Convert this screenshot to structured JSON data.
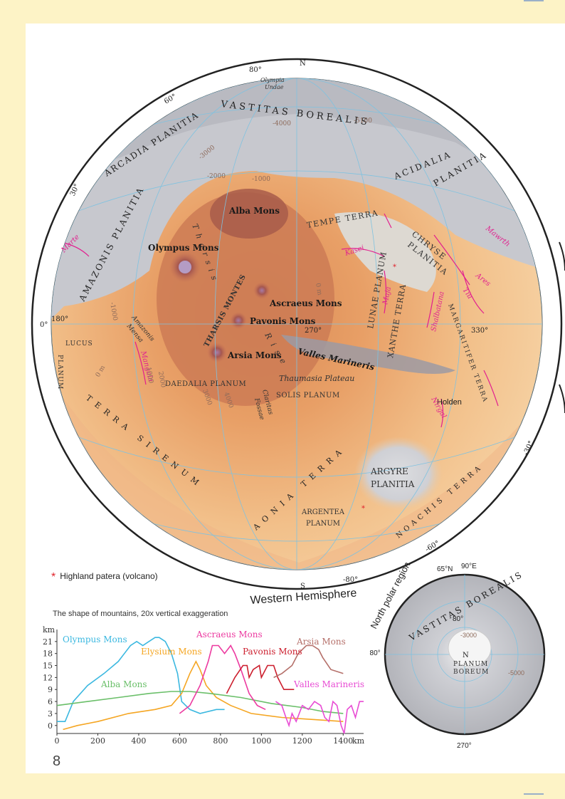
{
  "main_map": {
    "compass_north": "N",
    "compass_south": "S",
    "caption": "Western Hemisphere",
    "degree_labels": {
      "lat_80": "80°",
      "lat_60": "60°",
      "lat_30": "30°",
      "lat_0": "0°",
      "lat_m30": "-30°",
      "lat_m60": "-60°",
      "lat_m80": "-80°",
      "lon_180": "180°",
      "lon_270": "270°",
      "lon_330": "330°"
    },
    "regions": {
      "vastitas_borealis": "VASTITAS BOREALIS",
      "arcadia_planitia": "ARCADIA PLANITIA",
      "amazonis_planitia": "AMAZONIS PLANITIA",
      "acidalia": "ACIDALIA",
      "planitia": "PLANITIA",
      "tempe_terra": "TEMPE TERRA",
      "chryse": "CHRYSE",
      "chryse_planitia": "PLANITIA",
      "lunae_planum": "LUNAE PLANUM",
      "xanthe_terra": "XANTHE TERRA",
      "margaritifer_terra": "MARGARITIFER TERRA",
      "lucus": "LUCUS",
      "planum": "PLANUM",
      "daedalia_planum": "DAEDALIA PLANUM",
      "solis_planum": "SOLIS PLANUM",
      "terra_sirenum": "TERRA SIRENUM",
      "aonia_terra": "AONIA TERRA",
      "argyre": "ARGYRE",
      "argyre_planitia": "PLANITIA",
      "noachis_terra": "NOACHIS TERRA",
      "argentea": "ARGENTEA",
      "argentea_planum": "PLANUM",
      "tharsis_rise_1": "Tharsis",
      "tharsis_rise_2": "Rise",
      "tharsis_montes": "THARSIS MONTES",
      "thaumasia_plateau": "Thaumasia Plateau",
      "olympia_undae": "Olympia",
      "olympia_undae_2": "Undae",
      "amazonis_mensa": "Amazonis",
      "amazonis_mensa_2": "Mensa",
      "claritas_fossae": "Claritas",
      "claritas_fossae_2": "Fossae"
    },
    "features": {
      "alba_mons": "Alba Mons",
      "olympus_mons": "Olympus Mons",
      "ascraeus_mons": "Ascraeus Mons",
      "pavonis_mons": "Pavonis Mons",
      "arsia_mons": "Arsia Mons",
      "valles_marineris": "Valles Marineris",
      "holden": "Holden"
    },
    "valleys": {
      "marte": "Marte",
      "mawrth": "Mawrth",
      "kasei": "Kasei",
      "maja": "Maja",
      "ares": "Ares",
      "tiu": "Tiu",
      "shalbatana": "Shalbatana",
      "mangala": "Mangala",
      "nirgal": "Nirgal"
    },
    "contours": {
      "c_m4000": "-4000",
      "c_m5100": "-5100",
      "c_m3000": "-3000",
      "c_m2000": "-2000",
      "c_m1000": "-1000",
      "c_m1000b": "-1000",
      "c_0m": "0 m",
      "c_0m_b": "0 m",
      "c_1000": "1000",
      "c_2000": "2000",
      "c_3000": "3000",
      "c_4000": "4000"
    }
  },
  "legend": {
    "highland_patera": "Highland patera (volcano)"
  },
  "polar_map": {
    "title": "North polar region",
    "lat_label": "65°N",
    "lon_90": "90°E",
    "lon_180": "180°",
    "lon_270": "270°",
    "region": "VASTITAS BOREALIS",
    "lat_80": "80°",
    "contour_3000": "-3000",
    "contour_5000": "-5000",
    "pole": "N",
    "planum": "PLANUM",
    "boreum": "BOREUM"
  },
  "profile_chart_title": "The shape of mountains, 20x vertical exaggeration",
  "chart_data": {
    "type": "line",
    "title": "The shape of mountains, 20x vertical exaggeration",
    "xlabel": "km",
    "ylabel": "km",
    "xlim": [
      0,
      1500
    ],
    "ylim": [
      -2,
      24
    ],
    "x_ticks": [
      "0",
      "200",
      "400",
      "600",
      "800",
      "1000",
      "1200",
      "1400"
    ],
    "y_ticks": [
      "0",
      "3",
      "6",
      "9",
      "12",
      "15",
      "18",
      "21"
    ],
    "series": [
      {
        "name": "Olympus Mons",
        "color": "#3bb8e0",
        "points": [
          [
            0,
            1
          ],
          [
            40,
            1
          ],
          [
            80,
            6
          ],
          [
            150,
            10
          ],
          [
            230,
            13
          ],
          [
            300,
            16
          ],
          [
            330,
            18
          ],
          [
            360,
            20
          ],
          [
            390,
            21
          ],
          [
            420,
            20
          ],
          [
            450,
            21
          ],
          [
            480,
            22
          ],
          [
            500,
            22
          ],
          [
            530,
            21
          ],
          [
            560,
            18
          ],
          [
            590,
            13
          ],
          [
            610,
            6
          ],
          [
            650,
            4
          ],
          [
            700,
            3
          ],
          [
            780,
            4
          ],
          [
            820,
            4
          ]
        ]
      },
      {
        "name": "Elysium Mons",
        "color": "#f5a623",
        "points": [
          [
            30,
            -1
          ],
          [
            100,
            0
          ],
          [
            200,
            1
          ],
          [
            350,
            3
          ],
          [
            480,
            4
          ],
          [
            560,
            5
          ],
          [
            610,
            8
          ],
          [
            650,
            13
          ],
          [
            680,
            16
          ],
          [
            700,
            14
          ],
          [
            730,
            10
          ],
          [
            780,
            7
          ],
          [
            850,
            5
          ],
          [
            950,
            3
          ],
          [
            1100,
            2
          ],
          [
            1250,
            1.5
          ],
          [
            1400,
            1
          ]
        ]
      },
      {
        "name": "Alba Mons",
        "color": "#6abf69",
        "points": [
          [
            0,
            5
          ],
          [
            150,
            6
          ],
          [
            300,
            7
          ],
          [
            450,
            8
          ],
          [
            560,
            8.5
          ],
          [
            650,
            8.5
          ],
          [
            750,
            8
          ],
          [
            900,
            7
          ],
          [
            1050,
            5.5
          ],
          [
            1200,
            4.5
          ],
          [
            1300,
            3.5
          ],
          [
            1400,
            3
          ]
        ]
      },
      {
        "name": "Ascraeus Mons",
        "color": "#ec3aa0",
        "points": [
          [
            600,
            3
          ],
          [
            650,
            5
          ],
          [
            700,
            10
          ],
          [
            740,
            16
          ],
          [
            760,
            20
          ],
          [
            790,
            20
          ],
          [
            820,
            18
          ],
          [
            850,
            20
          ],
          [
            870,
            18
          ],
          [
            900,
            14
          ],
          [
            940,
            8
          ],
          [
            980,
            5
          ],
          [
            1020,
            4
          ]
        ]
      },
      {
        "name": "Pavonis Mons",
        "color": "#cc1f2e",
        "points": [
          [
            830,
            8
          ],
          [
            870,
            12
          ],
          [
            910,
            15
          ],
          [
            930,
            15
          ],
          [
            940,
            12
          ],
          [
            960,
            14
          ],
          [
            990,
            15
          ],
          [
            1000,
            12
          ],
          [
            1030,
            15
          ],
          [
            1060,
            15
          ],
          [
            1080,
            12
          ],
          [
            1110,
            9
          ],
          [
            1160,
            9
          ]
        ]
      },
      {
        "name": "Arsia Mons",
        "color": "#b5706a",
        "points": [
          [
            1060,
            12
          ],
          [
            1100,
            13
          ],
          [
            1150,
            15
          ],
          [
            1180,
            18
          ],
          [
            1220,
            20
          ],
          [
            1250,
            20
          ],
          [
            1280,
            19
          ],
          [
            1300,
            17
          ],
          [
            1340,
            14
          ],
          [
            1400,
            13
          ]
        ]
      },
      {
        "name": "Valles Marineris",
        "color": "#e84cd4",
        "points": [
          [
            1070,
            6
          ],
          [
            1100,
            5
          ],
          [
            1120,
            2
          ],
          [
            1135,
            0
          ],
          [
            1150,
            3
          ],
          [
            1170,
            1
          ],
          [
            1200,
            5
          ],
          [
            1230,
            4
          ],
          [
            1260,
            6
          ],
          [
            1290,
            5
          ],
          [
            1310,
            2
          ],
          [
            1330,
            1
          ],
          [
            1350,
            6
          ],
          [
            1370,
            5
          ],
          [
            1390,
            0
          ],
          [
            1405,
            -2
          ],
          [
            1420,
            4
          ],
          [
            1440,
            5
          ],
          [
            1460,
            2
          ],
          [
            1480,
            6
          ],
          [
            1500,
            6
          ]
        ]
      }
    ]
  }
}
